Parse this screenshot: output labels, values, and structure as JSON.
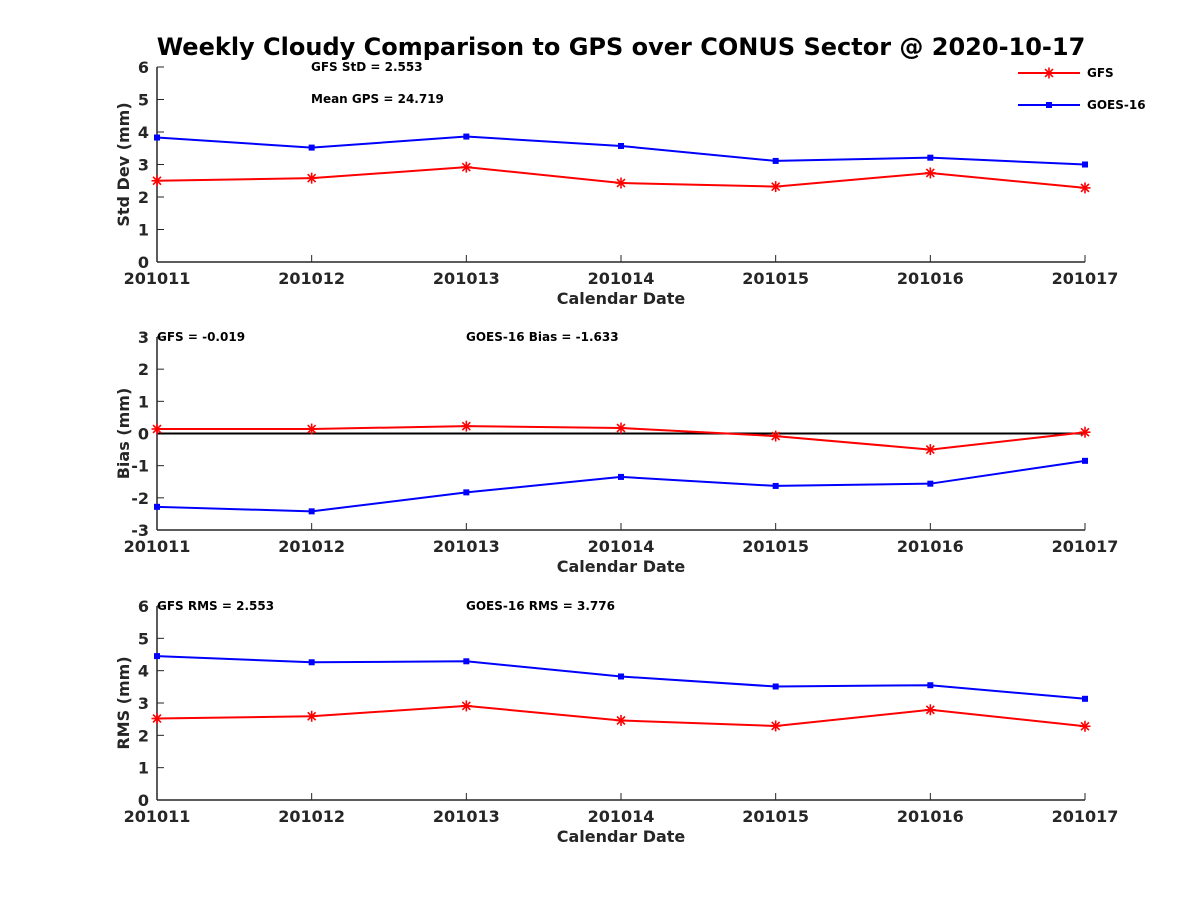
{
  "title": "Weekly Cloudy Comparison to GPS over CONUS Sector @ 2020-10-17",
  "legend": [
    {
      "name": "GFS",
      "color": "#ff0000",
      "marker": "asterisk"
    },
    {
      "name": "GOES-16",
      "color": "#0000ff",
      "marker": "square"
    }
  ],
  "chart_data": [
    {
      "type": "line",
      "categories": [
        "201011",
        "201012",
        "201013",
        "201014",
        "201015",
        "201016",
        "201017"
      ],
      "ylabel": "Std Dev (mm)",
      "xlabel": "Calendar Date",
      "ylim": [
        0,
        6
      ],
      "yticks": [
        0,
        1,
        2,
        3,
        4,
        5,
        6
      ],
      "grid": false,
      "legend_position": "top-right",
      "annotations": [
        "GFS StD = 2.553",
        "Mean GPS = 24.719"
      ],
      "series": [
        {
          "name": "GFS",
          "color": "#ff0000",
          "marker": "asterisk",
          "values": [
            2.5,
            2.58,
            2.92,
            2.43,
            2.32,
            2.74,
            2.28
          ]
        },
        {
          "name": "GOES-16",
          "color": "#0000ff",
          "marker": "square",
          "values": [
            3.83,
            3.52,
            3.86,
            3.57,
            3.11,
            3.21,
            3.0
          ]
        }
      ]
    },
    {
      "type": "line",
      "categories": [
        "201011",
        "201012",
        "201013",
        "201014",
        "201015",
        "201016",
        "201017"
      ],
      "ylabel": "Bias (mm)",
      "xlabel": "Calendar Date",
      "ylim": [
        -3,
        3
      ],
      "yticks": [
        -3,
        -2,
        -1,
        0,
        1,
        2,
        3
      ],
      "grid": false,
      "zero_line": true,
      "annotations": [
        "GFS = -0.019",
        "GOES-16 Bias  = -1.633"
      ],
      "series": [
        {
          "name": "GFS",
          "color": "#ff0000",
          "marker": "asterisk",
          "values": [
            0.14,
            0.14,
            0.23,
            0.17,
            -0.08,
            -0.5,
            0.04
          ]
        },
        {
          "name": "GOES-16",
          "color": "#0000ff",
          "marker": "square",
          "values": [
            -2.28,
            -2.42,
            -1.83,
            -1.35,
            -1.63,
            -1.56,
            -0.85
          ]
        }
      ]
    },
    {
      "type": "line",
      "categories": [
        "201011",
        "201012",
        "201013",
        "201014",
        "201015",
        "201016",
        "201017"
      ],
      "ylabel": "RMS (mm)",
      "xlabel": "Calendar Date",
      "ylim": [
        0,
        6
      ],
      "yticks": [
        0,
        1,
        2,
        3,
        4,
        5,
        6
      ],
      "grid": false,
      "annotations": [
        "GFS RMS = 2.553",
        "GOES-16 RMS = 3.776"
      ],
      "series": [
        {
          "name": "GFS",
          "color": "#ff0000",
          "marker": "asterisk",
          "values": [
            2.52,
            2.59,
            2.91,
            2.46,
            2.29,
            2.79,
            2.28
          ]
        },
        {
          "name": "GOES-16",
          "color": "#0000ff",
          "marker": "square",
          "values": [
            4.45,
            4.26,
            4.29,
            3.82,
            3.51,
            3.55,
            3.13
          ]
        }
      ]
    }
  ]
}
